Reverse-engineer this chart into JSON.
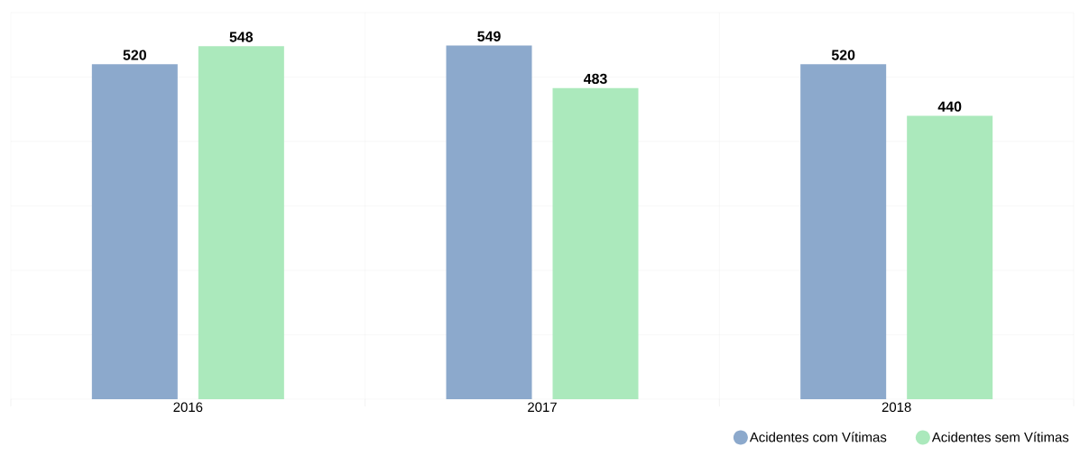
{
  "chart_data": {
    "type": "bar",
    "categories": [
      "2016",
      "2017",
      "2018"
    ],
    "series": [
      {
        "name": "Acidentes com Vítimas",
        "color": "#8ca9cc",
        "values": [
          520,
          549,
          520
        ]
      },
      {
        "name": "Acidentes sem Vítimas",
        "color": "#abe9bc",
        "values": [
          548,
          483,
          440
        ]
      }
    ],
    "ylim": [
      0,
      600
    ],
    "yticks": [
      {
        "value": 0,
        "label": null
      },
      {
        "value": 100,
        "label": null
      },
      {
        "value": 200,
        "label": null
      },
      {
        "value": 300,
        "label": null
      },
      {
        "value": 400,
        "label": null
      },
      {
        "value": 500,
        "label": null
      },
      {
        "value": 600,
        "label": null
      }
    ],
    "tick_labels": "x",
    "grid": true,
    "data_labels": true,
    "legend": "bottom right",
    "marker": "circle"
  }
}
